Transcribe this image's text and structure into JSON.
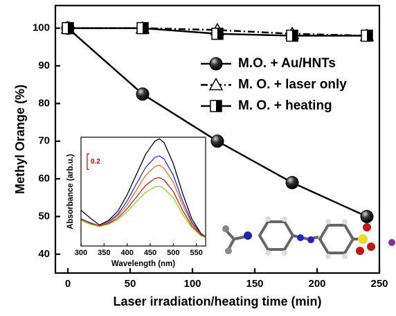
{
  "chart_data": [
    {
      "type": "line",
      "x_label": "Laser irradiation/heating time (min)",
      "y_label": "Methyl Orange (%)",
      "x": [
        0,
        60,
        120,
        180,
        240
      ],
      "series": [
        {
          "name": "M.O. + Au/HNTs",
          "color": "#000000",
          "marker": "ball",
          "dash": "solid",
          "values": [
            100,
            82.5,
            70,
            59,
            50
          ]
        },
        {
          "name": "M. O. + laser only",
          "color": "#000000",
          "marker": "triangle",
          "dash": "dashdot",
          "values": [
            100,
            100,
            99.5,
            98.5,
            98
          ]
        },
        {
          "name": "M. O. + heating",
          "color": "#000000",
          "marker": "half-square",
          "dash": "solid",
          "values": [
            100,
            100,
            98.5,
            98,
            98
          ]
        }
      ],
      "xlim": [
        -10,
        250
      ],
      "xticks": [
        0,
        50,
        100,
        150,
        200,
        250
      ],
      "ylim": [
        35,
        106
      ],
      "yticks": [
        40,
        50,
        60,
        70,
        80,
        90,
        100
      ],
      "legend": "upper right"
    },
    {
      "type": "line",
      "x_label": "Wavelength (nm)",
      "y_label": "Absorbance (arb.u.)",
      "scale_bar": 0.2,
      "x": [
        300,
        320,
        340,
        360,
        380,
        400,
        420,
        440,
        460,
        470,
        480,
        500,
        520,
        540,
        560,
        570
      ],
      "series": [
        {
          "color": "#000000",
          "values": [
            0.46,
            0.36,
            0.27,
            0.33,
            0.45,
            0.66,
            0.92,
            1.18,
            1.35,
            1.38,
            1.33,
            1.06,
            0.68,
            0.35,
            0.16,
            0.12
          ]
        },
        {
          "color": "#2a2ae0",
          "values": [
            0.35,
            0.3,
            0.26,
            0.31,
            0.41,
            0.58,
            0.8,
            1.01,
            1.14,
            1.16,
            1.12,
            0.91,
            0.58,
            0.31,
            0.15,
            0.12
          ]
        },
        {
          "color": "#e8702a",
          "values": [
            0.34,
            0.29,
            0.26,
            0.3,
            0.39,
            0.53,
            0.72,
            0.91,
            1.02,
            1.04,
            1.0,
            0.82,
            0.53,
            0.29,
            0.14,
            0.11
          ]
        },
        {
          "color": "#e01a1a",
          "values": [
            0.33,
            0.29,
            0.26,
            0.29,
            0.36,
            0.48,
            0.63,
            0.78,
            0.87,
            0.88,
            0.85,
            0.7,
            0.46,
            0.26,
            0.14,
            0.11
          ]
        },
        {
          "color": "#7ddc1f",
          "values": [
            0.33,
            0.28,
            0.25,
            0.28,
            0.34,
            0.44,
            0.57,
            0.69,
            0.76,
            0.77,
            0.74,
            0.62,
            0.41,
            0.24,
            0.13,
            0.11
          ]
        }
      ],
      "xlim": [
        300,
        570
      ],
      "xticks": [
        300,
        350,
        400,
        450,
        500,
        550
      ],
      "ylim": [
        0,
        1.4
      ]
    }
  ]
}
